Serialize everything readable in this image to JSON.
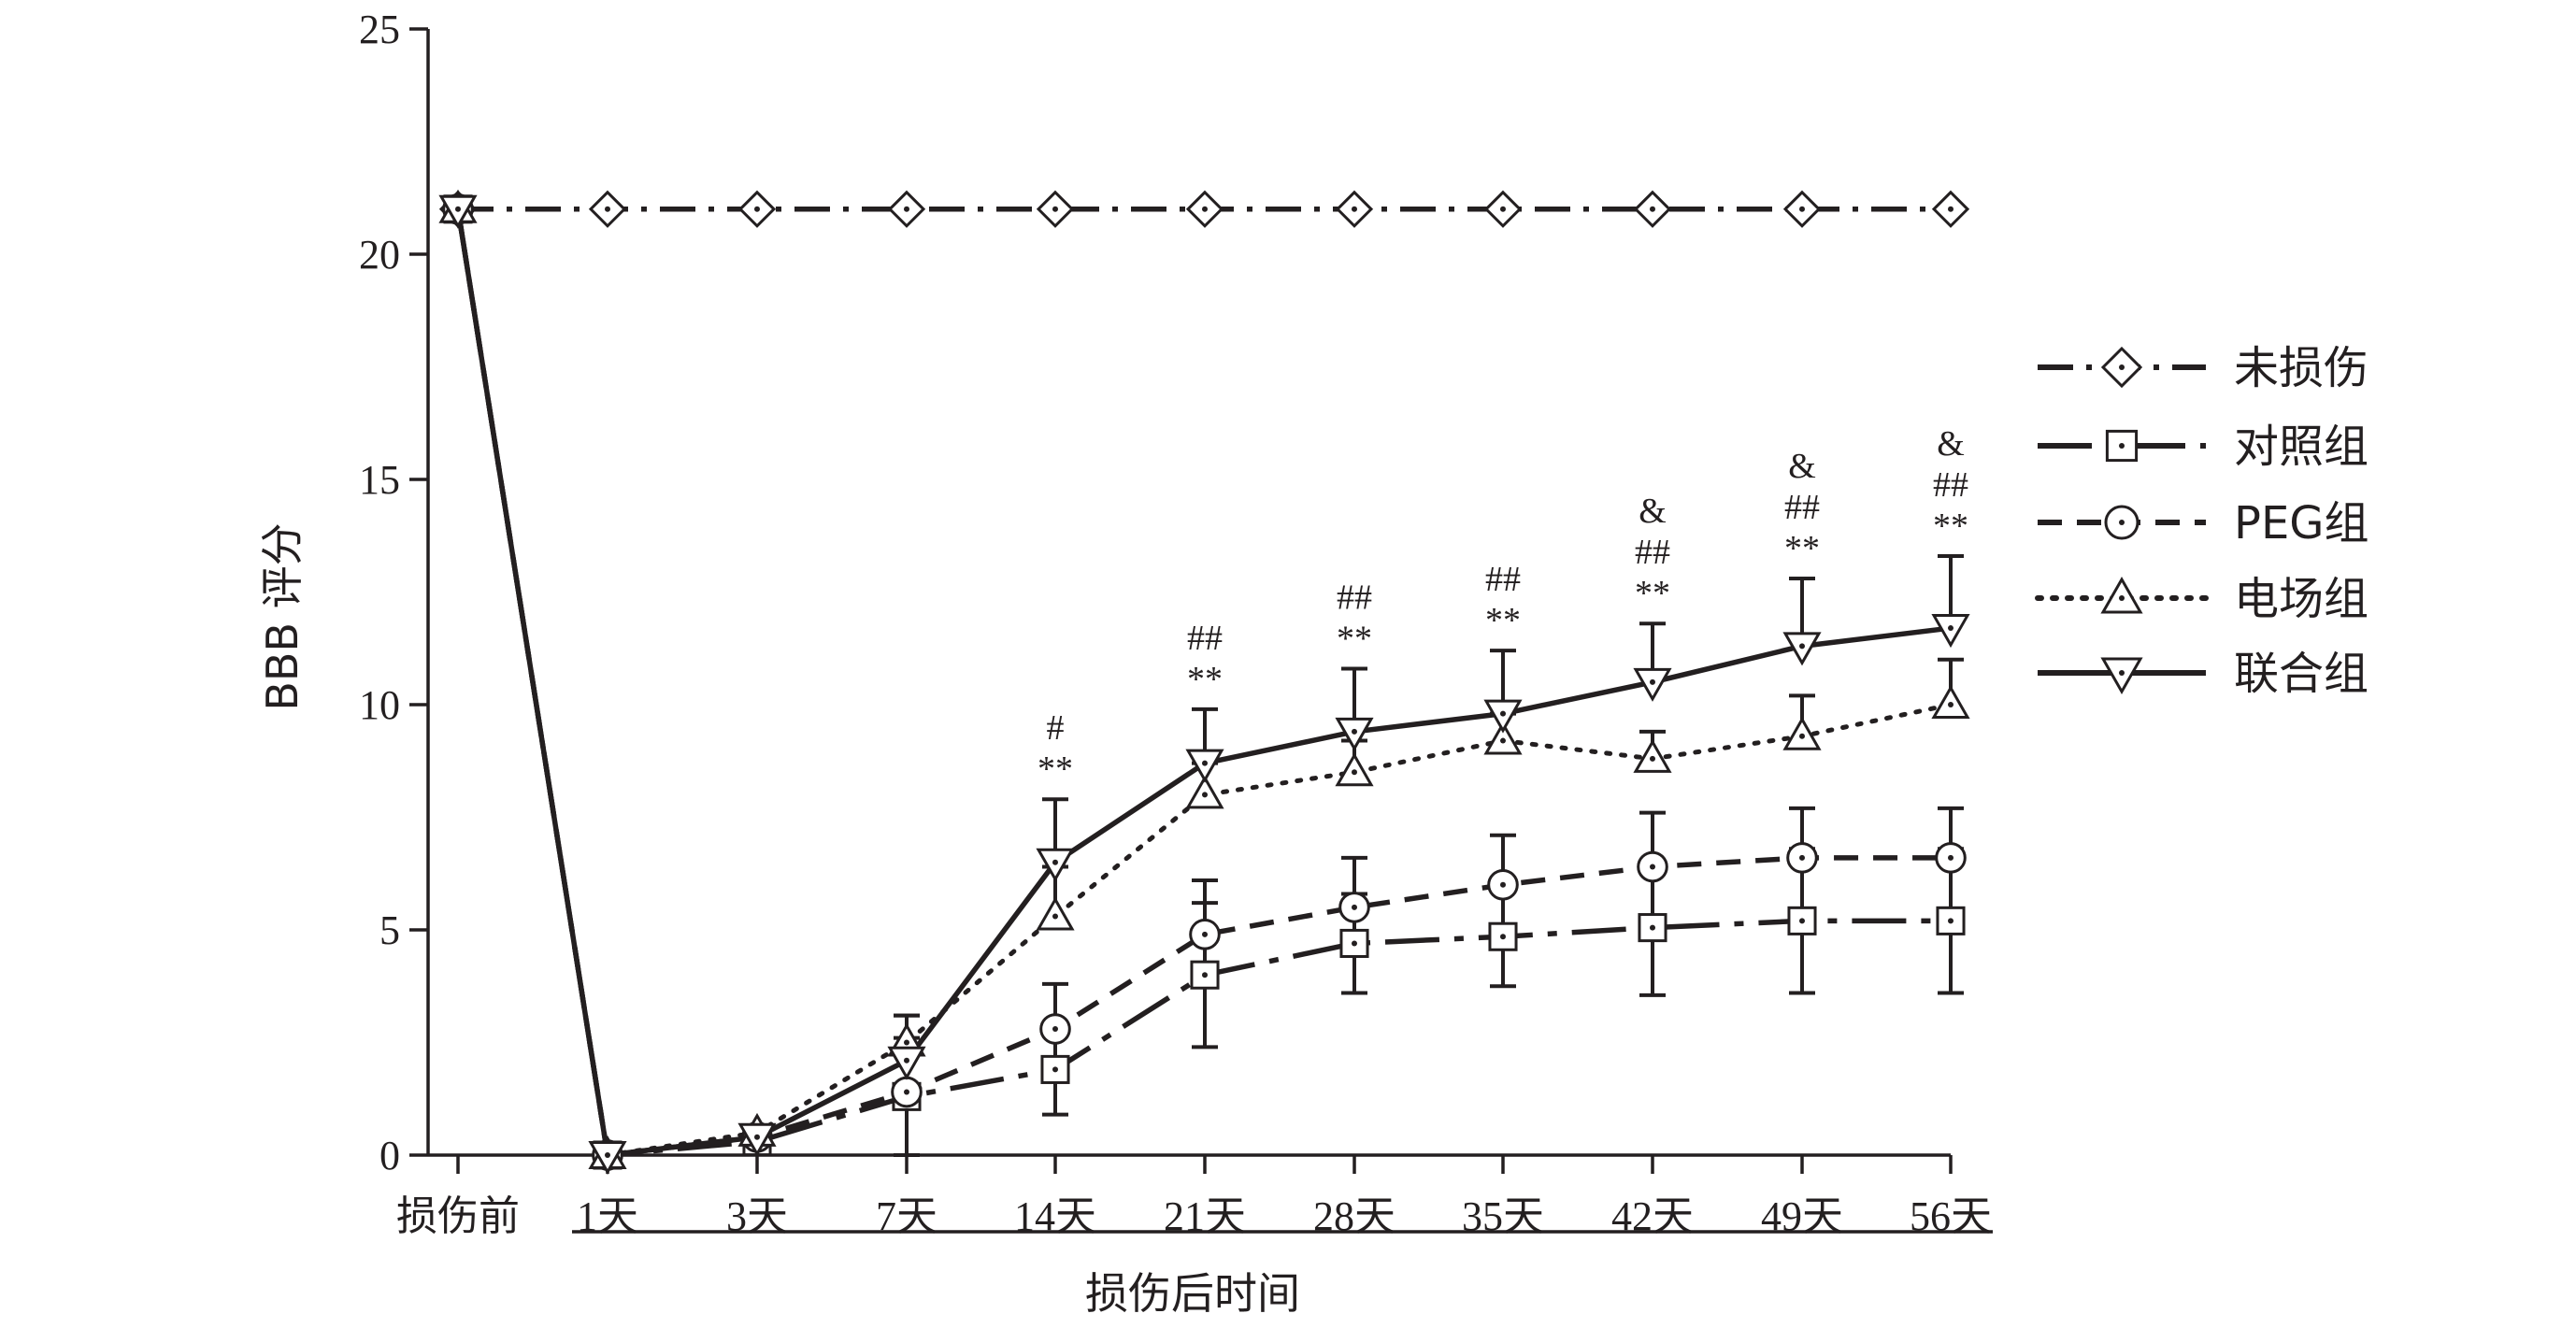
{
  "chart_data": {
    "type": "line",
    "title": "",
    "ylabel": "BBB 评分",
    "xlabel": "损伤后时间",
    "ylim": [
      0,
      25
    ],
    "yticks": [
      0,
      5,
      10,
      15,
      20,
      25
    ],
    "yticklabels": [
      "0",
      "5",
      "10",
      "15",
      "20",
      "25"
    ],
    "categories": [
      "损伤前",
      "1天",
      "3天",
      "7天",
      "14天",
      "21天",
      "28天",
      "35天",
      "42天",
      "49天",
      "56天"
    ],
    "legend_position": "right",
    "grid": false,
    "series": [
      {
        "name": "未损伤",
        "marker": "diamond",
        "line_style": "dash-dot",
        "values": [
          21,
          21,
          21,
          21,
          21,
          21,
          21,
          21,
          21,
          21,
          21
        ],
        "error": [
          0,
          0,
          0,
          0,
          0,
          0,
          0,
          0,
          0,
          0,
          0
        ]
      },
      {
        "name": "对照组",
        "marker": "square",
        "line_style": "long-dash-dot",
        "values": [
          21,
          0,
          0.3,
          1.3,
          1.9,
          4.0,
          4.7,
          4.85,
          5.05,
          5.2,
          5.2
        ],
        "error": [
          0,
          0,
          0,
          1.3,
          1.0,
          1.6,
          1.1,
          1.1,
          1.5,
          1.6,
          1.6
        ]
      },
      {
        "name": "PEG组",
        "marker": "circle",
        "line_style": "dashed",
        "values": [
          21,
          0,
          0.4,
          1.4,
          2.8,
          4.9,
          5.5,
          6.0,
          6.4,
          6.6,
          6.6
        ],
        "error": [
          0,
          0,
          0,
          0,
          1.0,
          1.2,
          1.1,
          1.1,
          1.2,
          1.1,
          1.1
        ]
      },
      {
        "name": "电场组",
        "marker": "triangle-up",
        "line_style": "dotted",
        "values": [
          21,
          0,
          0.5,
          2.5,
          5.3,
          8.0,
          8.5,
          9.2,
          8.8,
          9.3,
          10.0
        ],
        "error": [
          0,
          0,
          0,
          0.6,
          1.1,
          0.7,
          0.7,
          0.6,
          0.6,
          0.9,
          1.0
        ]
      },
      {
        "name": "联合组",
        "marker": "triangle-down",
        "line_style": "solid",
        "values": [
          21,
          0,
          0.4,
          2.1,
          6.5,
          8.7,
          9.4,
          9.8,
          10.5,
          11.3,
          11.7
        ],
        "error": [
          0,
          0,
          0,
          1.0,
          1.4,
          1.2,
          1.4,
          1.4,
          1.3,
          1.5,
          1.6
        ]
      }
    ],
    "annotations": [
      {
        "category": "14天",
        "lines": [
          "#",
          "**"
        ]
      },
      {
        "category": "21天",
        "lines": [
          "##",
          "**"
        ]
      },
      {
        "category": "28天",
        "lines": [
          "##",
          "**"
        ]
      },
      {
        "category": "35天",
        "lines": [
          "##",
          "**"
        ]
      },
      {
        "category": "42天",
        "lines": [
          "&",
          "##",
          "**"
        ]
      },
      {
        "category": "49天",
        "lines": [
          "&",
          "##",
          "**"
        ]
      },
      {
        "category": "56天",
        "lines": [
          "&",
          "##",
          "**"
        ]
      }
    ]
  }
}
